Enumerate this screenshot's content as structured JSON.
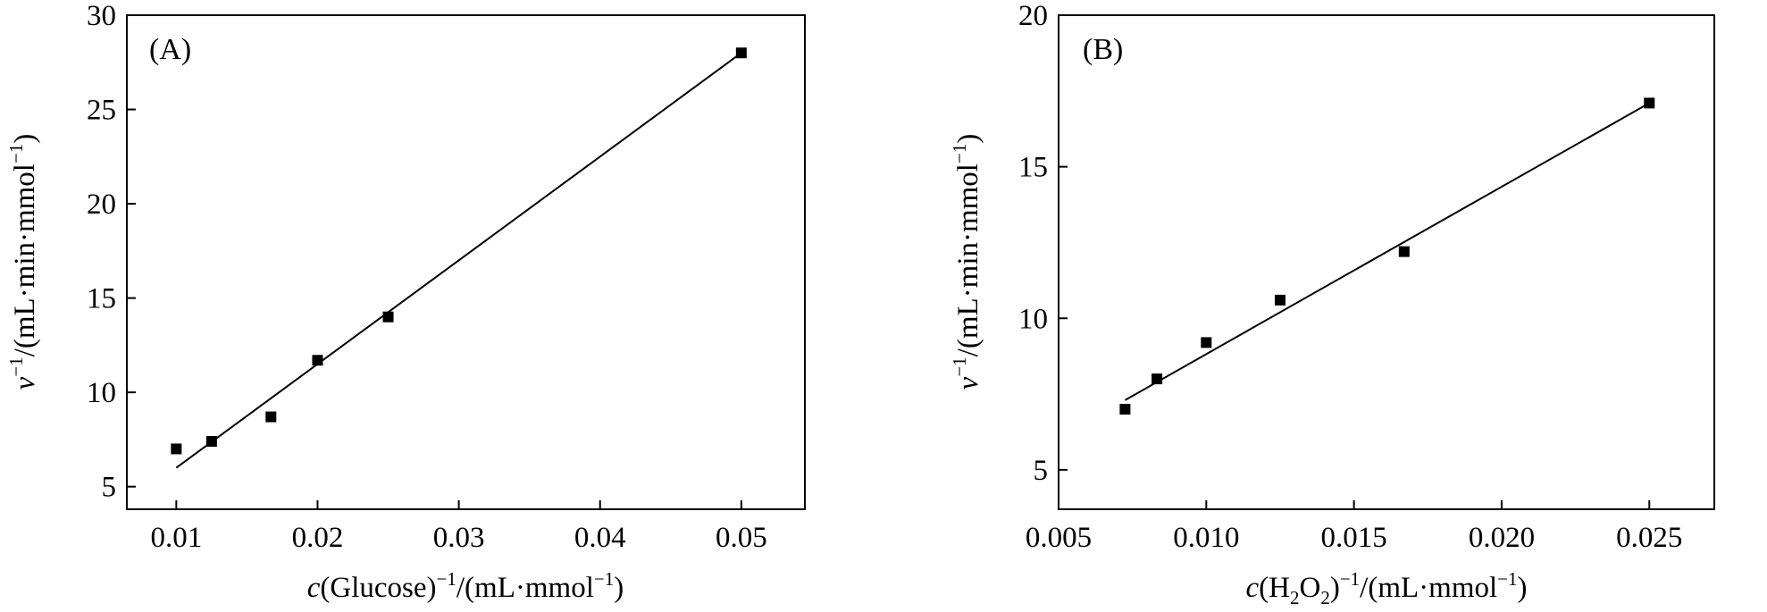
{
  "chart_data": [
    {
      "type": "scatter",
      "panel_label": "(A)",
      "x": [
        0.01,
        0.0125,
        0.0167,
        0.02,
        0.025,
        0.05
      ],
      "y": [
        7.0,
        7.4,
        8.7,
        11.7,
        14.0,
        28.0
      ],
      "fit_line": {
        "from": [
          0.01,
          6.0
        ],
        "to": [
          0.05,
          28.0
        ]
      },
      "xlim": [
        0.0065,
        0.0545
      ],
      "ylim": [
        3.8,
        30.0
      ],
      "xticks": [
        0.01,
        0.02,
        0.03,
        0.04,
        0.05
      ],
      "xtick_labels": [
        "0.01",
        "0.02",
        "0.03",
        "0.04",
        "0.05"
      ],
      "yticks": [
        5,
        10,
        15,
        20,
        25,
        30
      ],
      "ytick_labels": [
        "5",
        "10",
        "15",
        "20",
        "25",
        "30"
      ],
      "xlabel": {
        "pre": "c",
        "mid": "(Glucose)",
        "sup": "−1",
        "post1": "/(mL·mmol",
        "sup2": "−1",
        "post2": ")"
      },
      "ylabel": {
        "var": "v",
        "sup": "−1",
        "post1": "/(mL·min·mmol",
        "sup2": "−1",
        "post2": ")"
      }
    },
    {
      "type": "scatter",
      "panel_label": "(B)",
      "x": [
        0.00725,
        0.00833,
        0.01,
        0.0125,
        0.0167,
        0.025
      ],
      "y": [
        7.0,
        8.0,
        9.2,
        10.6,
        12.2,
        17.1
      ],
      "fit_line": {
        "from": [
          0.00725,
          7.3
        ],
        "to": [
          0.025,
          17.1
        ]
      },
      "xlim": [
        0.005,
        0.0272
      ],
      "ylim": [
        3.7,
        20.0
      ],
      "xticks": [
        0.005,
        0.01,
        0.015,
        0.02,
        0.025
      ],
      "xtick_labels": [
        "0.005",
        "0.010",
        "0.015",
        "0.020",
        "0.025"
      ],
      "yticks": [
        5,
        10,
        15,
        20
      ],
      "ytick_labels": [
        "5",
        "10",
        "15",
        "20"
      ],
      "xlabel": {
        "pre": "c",
        "mid": "(H",
        "sub": "2",
        "mid2": "O",
        "sub2": "2",
        "mid3": ")",
        "sup": "−1",
        "post1": "/(mL·mmol",
        "sup2": "−1",
        "post2": ")"
      },
      "ylabel": {
        "var": "v",
        "sup": "−1",
        "post1": "/(mL·min·mmol",
        "sup2": "−1",
        "post2": ")"
      }
    }
  ]
}
